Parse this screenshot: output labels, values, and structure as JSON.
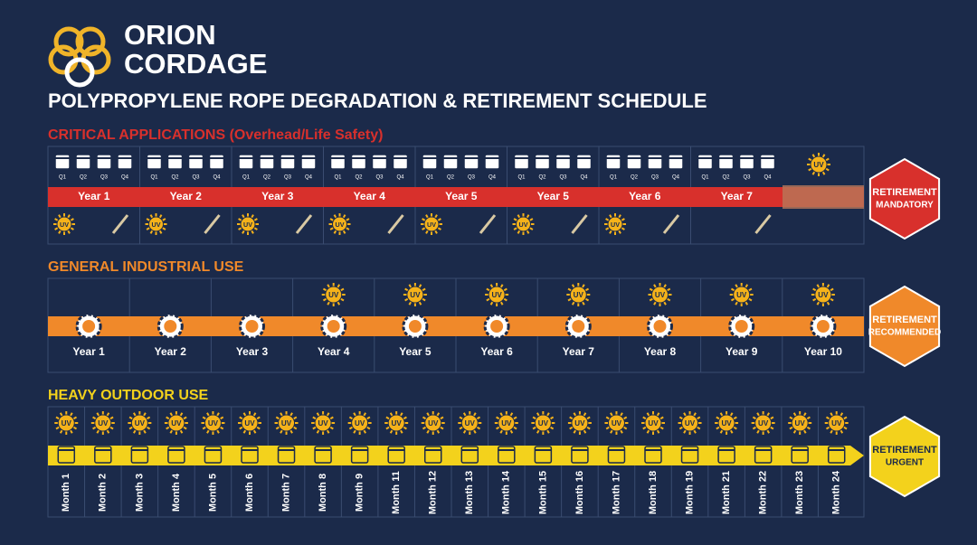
{
  "brand": {
    "line1": "ORION",
    "line2": "CORDAGE"
  },
  "title": "POLYPROPYLENE ROPE DEGRADATION & RETIREMENT SCHEDULE",
  "quarters": [
    "Q1",
    "Q2",
    "Q3",
    "Q4"
  ],
  "uv_label": "UV",
  "sections": [
    {
      "heading": "CRITICAL APPLICATIONS (Overhead/Life Safety)",
      "color": "#d8302c",
      "periods": [
        "Year 1",
        "Year 2",
        "Year 3",
        "Year 4",
        "Year 5",
        "Year 5",
        "Year 6",
        "Year 7"
      ],
      "badge": [
        "RETIREMENT",
        "MANDATORY"
      ]
    },
    {
      "heading": "GENERAL INDUSTRIAL USE",
      "color": "#f0892a",
      "periods": [
        "Year 1",
        "Year 2",
        "Year 3",
        "Year 4",
        "Year 5",
        "Year 6",
        "Year 7",
        "Year 8",
        "Year 9",
        "Year 10"
      ],
      "badge": [
        "RETIREMENT",
        "RECOMMENDED"
      ]
    },
    {
      "heading": "HEAVY OUTDOOR USE",
      "color": "#f3d21c",
      "periods": [
        "Month 1",
        "Month 2",
        "Month 3",
        "Month 4",
        "Month 5",
        "Month 6",
        "Month 7",
        "Month 8",
        "Month 9",
        "Month 11",
        "Month 12",
        "Month 13",
        "Month 14",
        "Month 15",
        "Month 16",
        "Month 17",
        "Month 18",
        "Month 19",
        "Month 21",
        "Month 22",
        "Month 23",
        "Month 24"
      ],
      "badge": [
        "RETIREMENT",
        "URGENT"
      ]
    }
  ]
}
